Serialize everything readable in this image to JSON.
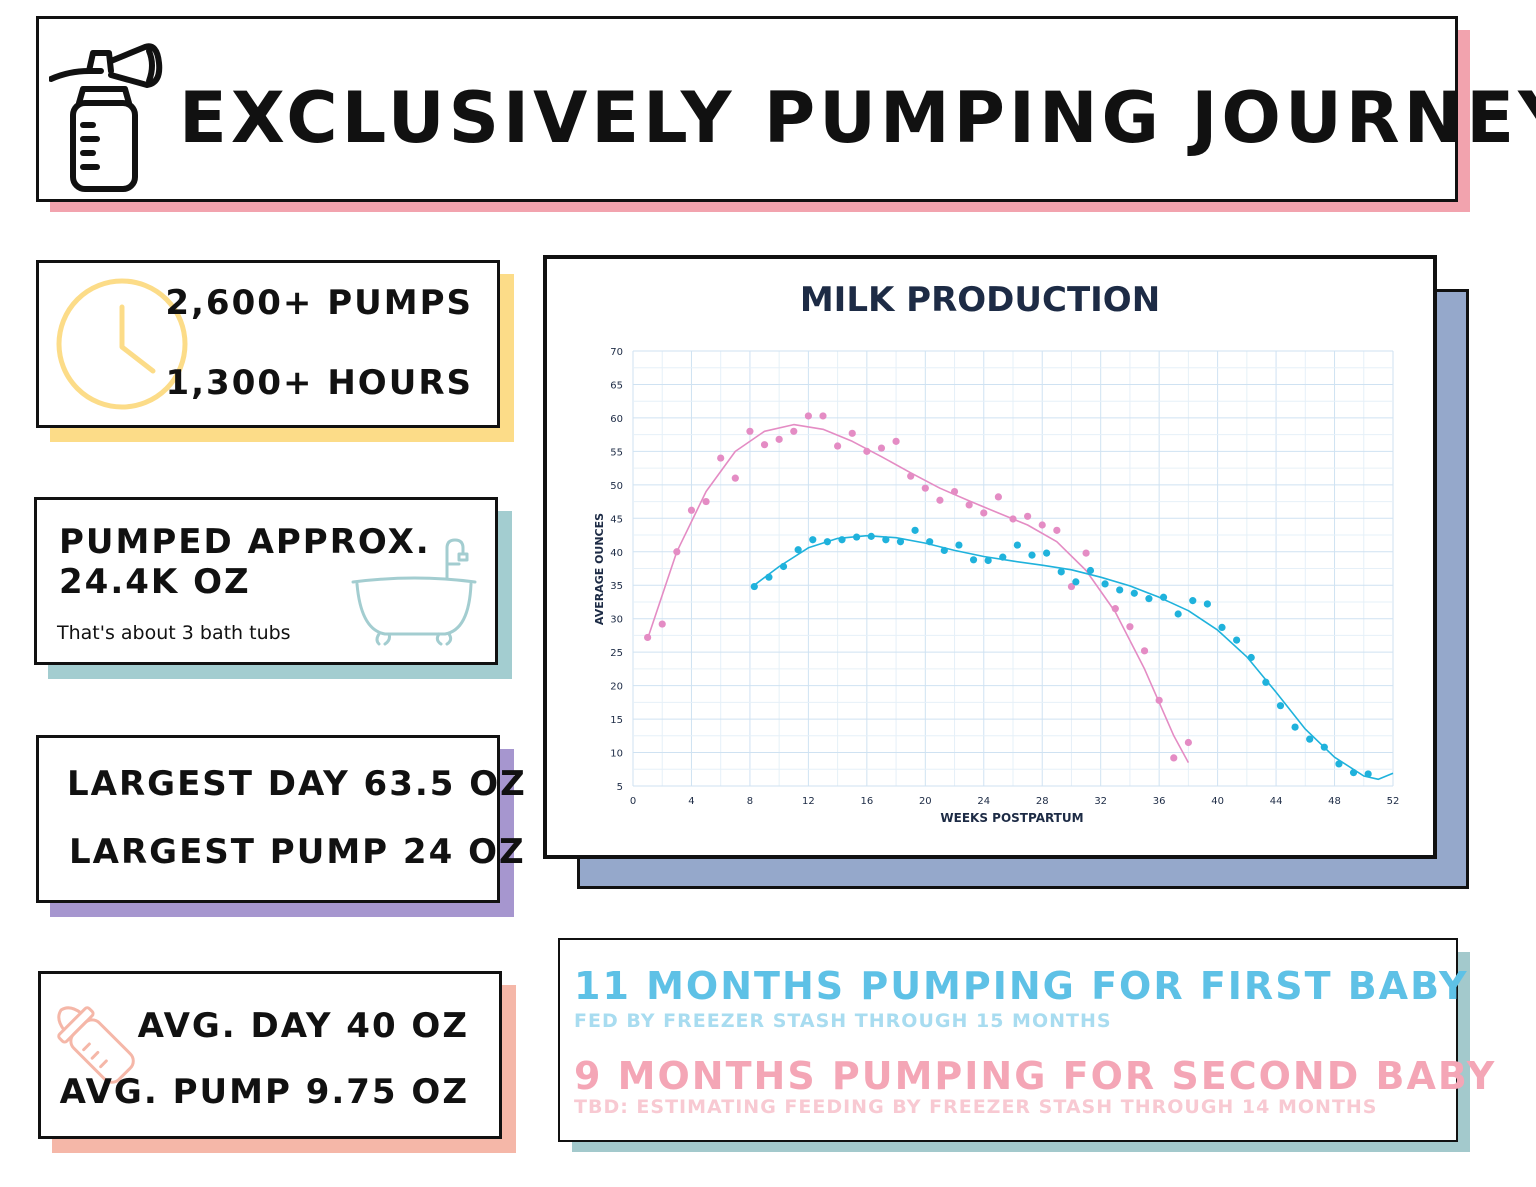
{
  "header": {
    "title": "EXCLUSIVELY PUMPING JOURNEY"
  },
  "stats": {
    "pumps": "2,600+ PUMPS",
    "hours": "1,300+ HOURS",
    "volume_title_1": "PUMPED APPROX.",
    "volume_title_2": "24.4K OZ",
    "volume_note": "That's about 3 bath tubs",
    "largest_day": "LARGEST DAY 63.5 OZ",
    "largest_pump": "LARGEST PUMP 24 OZ",
    "avg_day": "AVG. DAY 40 OZ",
    "avg_pump": "AVG. PUMP 9.75 OZ"
  },
  "summary": {
    "first_main": "11 MONTHS PUMPING FOR FIRST BABY",
    "first_sub": "FED BY FREEZER STASH THROUGH 15 MONTHS",
    "second_main": "9 MONTHS PUMPING FOR SECOND BABY",
    "second_sub": "TBD: ESTIMATING FEEDING BY FREEZER STASH THROUGH 14 MONTHS"
  },
  "colors": {
    "pink": "#f2a3ae",
    "yellow": "#fcdc88",
    "teal": "#a3cdd0",
    "purple": "#a696cf",
    "salmon": "#f5b7a8",
    "chart_shadow": "#95a8cb",
    "series_pink": "#e48cc4",
    "series_blue": "#1fb2dc",
    "summary_blue": "#5ec1e6",
    "summary_pink": "#f4a6b6",
    "chart_title": "#1d2b45"
  },
  "icons": [
    "breast-pump-icon",
    "clock-icon",
    "bathtub-icon",
    "baby-bottle-icon"
  ],
  "chart_data": {
    "type": "scatter",
    "title": "MILK PRODUCTION",
    "xlabel": "WEEKS POSTPARTUM",
    "ylabel": "AVERAGE OUNCES",
    "xlim": [
      0,
      52
    ],
    "ylim": [
      5,
      70
    ],
    "x_ticks": [
      0,
      4,
      8,
      12,
      16,
      20,
      24,
      28,
      32,
      36,
      40,
      44,
      48,
      52
    ],
    "y_ticks": [
      5,
      10,
      15,
      20,
      25,
      30,
      35,
      40,
      45,
      50,
      55,
      60,
      65,
      70
    ],
    "grid": true,
    "trendline": true,
    "series": [
      {
        "color": "#e48cc4",
        "points": [
          [
            1,
            27.2
          ],
          [
            2,
            29.2
          ],
          [
            3,
            40
          ],
          [
            4,
            46.2
          ],
          [
            5,
            47.5
          ],
          [
            6,
            54
          ],
          [
            7,
            51
          ],
          [
            8,
            58
          ],
          [
            9,
            56
          ],
          [
            10,
            56.8
          ],
          [
            11,
            58
          ],
          [
            12,
            60.3
          ],
          [
            13,
            60.3
          ],
          [
            14,
            55.8
          ],
          [
            15,
            57.7
          ],
          [
            16,
            55
          ],
          [
            17,
            55.5
          ],
          [
            18,
            56.5
          ],
          [
            19,
            51.3
          ],
          [
            20,
            49.5
          ],
          [
            21,
            47.7
          ],
          [
            22,
            49
          ],
          [
            23,
            47
          ],
          [
            24,
            45.8
          ],
          [
            25,
            48.2
          ],
          [
            26,
            44.9
          ],
          [
            27,
            45.3
          ],
          [
            28,
            44
          ],
          [
            29,
            43.2
          ],
          [
            30,
            34.8
          ],
          [
            31,
            39.8
          ],
          [
            33,
            31.5
          ],
          [
            34,
            28.8
          ],
          [
            35,
            25.2
          ],
          [
            36,
            17.8
          ],
          [
            37,
            9.2
          ],
          [
            38,
            11.5
          ]
        ],
        "trend": [
          [
            1,
            27
          ],
          [
            3,
            40
          ],
          [
            5,
            49
          ],
          [
            7,
            55
          ],
          [
            9,
            58
          ],
          [
            11,
            59
          ],
          [
            13,
            58.3
          ],
          [
            15,
            56.5
          ],
          [
            17,
            54.2
          ],
          [
            19,
            51.8
          ],
          [
            21,
            49.5
          ],
          [
            23,
            47.6
          ],
          [
            25,
            45.8
          ],
          [
            27,
            44
          ],
          [
            29,
            41.5
          ],
          [
            31,
            37.2
          ],
          [
            33,
            31
          ],
          [
            35,
            22.5
          ],
          [
            37,
            12.5
          ],
          [
            38,
            8.5
          ]
        ]
      },
      {
        "color": "#1fb2dc",
        "points": [
          [
            8.3,
            34.8
          ],
          [
            9.3,
            36.2
          ],
          [
            10.3,
            37.8
          ],
          [
            11.3,
            40.3
          ],
          [
            12.3,
            41.8
          ],
          [
            13.3,
            41.5
          ],
          [
            14.3,
            41.8
          ],
          [
            15.3,
            42.2
          ],
          [
            16.3,
            42.3
          ],
          [
            17.3,
            41.8
          ],
          [
            18.3,
            41.5
          ],
          [
            19.3,
            43.2
          ],
          [
            20.3,
            41.5
          ],
          [
            21.3,
            40.2
          ],
          [
            22.3,
            41
          ],
          [
            23.3,
            38.8
          ],
          [
            24.3,
            38.7
          ],
          [
            25.3,
            39.2
          ],
          [
            26.3,
            41
          ],
          [
            27.3,
            39.5
          ],
          [
            28.3,
            39.8
          ],
          [
            29.3,
            37
          ],
          [
            30.3,
            35.5
          ],
          [
            31.3,
            37.2
          ],
          [
            32.3,
            35.2
          ],
          [
            33.3,
            34.3
          ],
          [
            34.3,
            33.8
          ],
          [
            35.3,
            33
          ],
          [
            36.3,
            33.2
          ],
          [
            37.3,
            30.7
          ],
          [
            38.3,
            32.7
          ],
          [
            39.3,
            32.2
          ],
          [
            40.3,
            28.7
          ],
          [
            41.3,
            26.8
          ],
          [
            42.3,
            24.2
          ],
          [
            43.3,
            20.5
          ],
          [
            44.3,
            17
          ],
          [
            45.3,
            13.8
          ],
          [
            46.3,
            12
          ],
          [
            47.3,
            10.8
          ],
          [
            48.3,
            8.3
          ],
          [
            49.3,
            7
          ],
          [
            50.3,
            6.8
          ]
        ],
        "trend": [
          [
            8.3,
            35
          ],
          [
            10,
            37.8
          ],
          [
            12,
            40.6
          ],
          [
            14,
            42
          ],
          [
            16,
            42.4
          ],
          [
            18,
            42.1
          ],
          [
            20,
            41.3
          ],
          [
            22,
            40.2
          ],
          [
            24,
            39.3
          ],
          [
            26,
            38.6
          ],
          [
            28,
            38
          ],
          [
            30,
            37.3
          ],
          [
            32,
            36.2
          ],
          [
            34,
            34.9
          ],
          [
            36,
            33.2
          ],
          [
            38,
            31.2
          ],
          [
            40,
            28.3
          ],
          [
            42,
            24.3
          ],
          [
            44,
            19
          ],
          [
            46,
            13.5
          ],
          [
            48,
            9.3
          ],
          [
            50,
            6.5
          ],
          [
            51,
            6
          ],
          [
            52,
            6.9
          ]
        ]
      }
    ]
  }
}
